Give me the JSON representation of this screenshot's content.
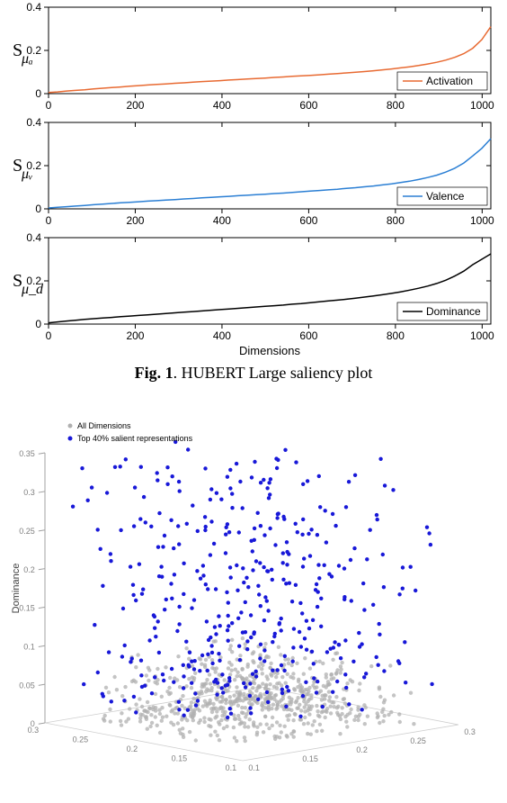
{
  "figure1": {
    "title": "Fig. 1. HUBERT Large saliency plot",
    "title_bold_part": "Fig. 1",
    "title_rest": ". HUBERT Large saliency plot",
    "xlabel": "Dimensions",
    "panels": [
      {
        "ylabel_main": "S",
        "ylabel_sub": "μₐ",
        "legend": "Activation",
        "color": "#e86a32",
        "ylim": [
          0,
          0.4
        ],
        "yticks": [
          0,
          0.2,
          0.4
        ],
        "xlim": [
          0,
          1020
        ],
        "xticks": [
          0,
          200,
          400,
          600,
          800,
          1000
        ],
        "show_xlabel": false,
        "data_y": [
          0.005,
          0.008,
          0.012,
          0.015,
          0.018,
          0.022,
          0.025,
          0.028,
          0.031,
          0.034,
          0.037,
          0.04,
          0.043,
          0.045,
          0.048,
          0.05,
          0.053,
          0.056,
          0.058,
          0.06,
          0.063,
          0.065,
          0.068,
          0.07,
          0.072,
          0.075,
          0.077,
          0.08,
          0.082,
          0.084,
          0.087,
          0.09,
          0.093,
          0.096,
          0.099,
          0.102,
          0.106,
          0.11,
          0.114,
          0.119,
          0.124,
          0.13,
          0.137,
          0.145,
          0.155,
          0.168,
          0.185,
          0.21,
          0.25,
          0.31
        ]
      },
      {
        "ylabel_main": "S",
        "ylabel_sub": "μᵥ",
        "legend": "Valence",
        "color": "#2b7fd4",
        "ylim": [
          0,
          0.4
        ],
        "yticks": [
          0,
          0.2,
          0.4
        ],
        "xlim": [
          0,
          1020
        ],
        "xticks": [
          0,
          200,
          400,
          600,
          800,
          1000
        ],
        "show_xlabel": false,
        "data_y": [
          0.004,
          0.007,
          0.01,
          0.013,
          0.016,
          0.019,
          0.022,
          0.025,
          0.028,
          0.03,
          0.033,
          0.036,
          0.038,
          0.041,
          0.043,
          0.046,
          0.048,
          0.051,
          0.053,
          0.056,
          0.058,
          0.061,
          0.063,
          0.066,
          0.068,
          0.071,
          0.073,
          0.076,
          0.079,
          0.082,
          0.085,
          0.088,
          0.091,
          0.095,
          0.098,
          0.102,
          0.106,
          0.111,
          0.116,
          0.122,
          0.128,
          0.136,
          0.145,
          0.156,
          0.17,
          0.188,
          0.212,
          0.245,
          0.28,
          0.325
        ]
      },
      {
        "ylabel_main": "S",
        "ylabel_sub": "μ_d",
        "legend": "Dominance",
        "color": "#000000",
        "ylim": [
          0,
          0.4
        ],
        "yticks": [
          0,
          0.2,
          0.4
        ],
        "xlim": [
          0,
          1020
        ],
        "xticks": [
          0,
          200,
          400,
          600,
          800,
          1000
        ],
        "show_xlabel": true,
        "data_y": [
          0.006,
          0.01,
          0.014,
          0.018,
          0.022,
          0.025,
          0.028,
          0.031,
          0.034,
          0.037,
          0.04,
          0.043,
          0.046,
          0.049,
          0.052,
          0.055,
          0.058,
          0.061,
          0.064,
          0.067,
          0.07,
          0.073,
          0.076,
          0.079,
          0.082,
          0.085,
          0.088,
          0.092,
          0.095,
          0.099,
          0.103,
          0.107,
          0.111,
          0.115,
          0.12,
          0.125,
          0.13,
          0.136,
          0.142,
          0.149,
          0.157,
          0.166,
          0.176,
          0.188,
          0.203,
          0.222,
          0.245,
          0.275,
          0.3,
          0.325
        ]
      }
    ]
  },
  "figure2": {
    "legend_items": [
      {
        "label": "All Dimensions",
        "color": "#b0b0b0"
      },
      {
        "label": "Top 40% salient representations",
        "color": "#1818d8"
      }
    ],
    "zlabel": "Dominance",
    "zticks": [
      0,
      0.05,
      0.1,
      0.15,
      0.2,
      0.25,
      0.3,
      0.35
    ],
    "xticks_left": [
      0.3,
      0.25,
      0.2,
      0.15,
      0.1
    ],
    "xticks_right": [
      0.1,
      0.15,
      0.2,
      0.25,
      0.3
    ],
    "n_gray": 700,
    "n_blue": 400,
    "gray_color": "#b0b0b0",
    "blue_color": "#1818d8",
    "gray_z_range": [
      0,
      0.08
    ],
    "blue_z_range": [
      0.03,
      0.35
    ],
    "marker_radius": 2.2,
    "background": "#ffffff"
  }
}
